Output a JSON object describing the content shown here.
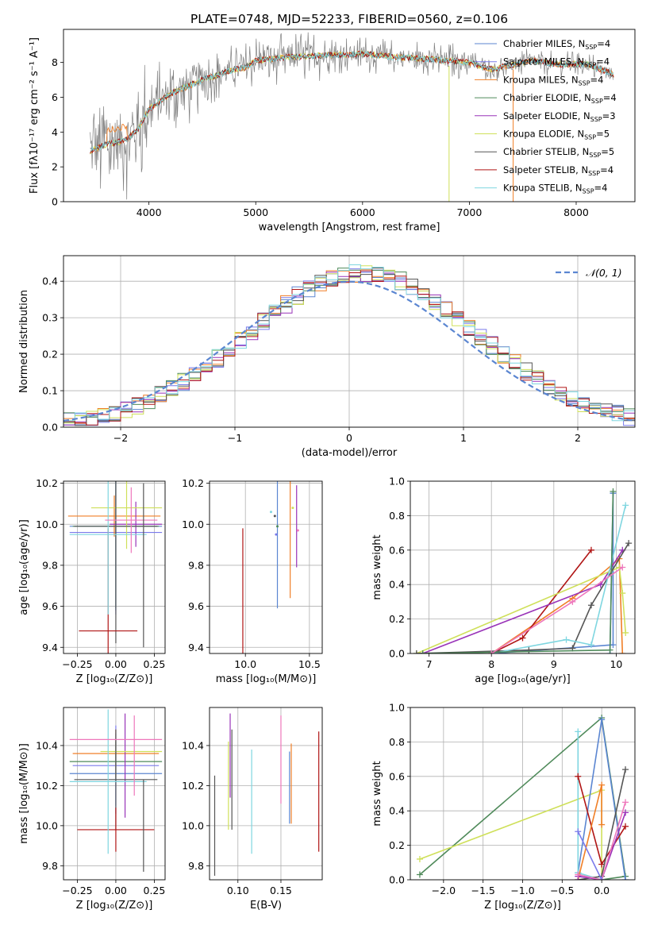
{
  "figure": {
    "title": "PLATE=0748, MJD=52233, FIBERID=0560, z=0.106"
  },
  "colors": {
    "chabrier_miles": "#5b86d1",
    "salpeter_miles": "#7a7aeb",
    "kroupa_miles": "#f07f27",
    "chabrier_elodie": "#4f8a5a",
    "salpeter_elodie": "#9933b8",
    "kroupa_elodie": "#cfe05a",
    "chabrier_stelib": "#555555",
    "salpeter_stelib": "#b01515",
    "kroupa_stelib": "#7fd6e0",
    "pink": "#ee77bb",
    "gray": "#808080"
  },
  "chart_data": [
    {
      "id": "spectrum",
      "type": "line",
      "xlabel": "wavelength [Angstrom, rest frame]",
      "ylabel": "Flux [fλ10⁻¹⁷ erg cm⁻² s⁻¹ A⁻¹]",
      "xlim": [
        3200,
        8550
      ],
      "ylim": [
        0,
        9.9
      ],
      "xticks": [
        "4000",
        "5000",
        "6000",
        "7000",
        "8000"
      ],
      "yticks": [
        "0",
        "2",
        "4",
        "6",
        "8"
      ],
      "continuum": {
        "x": [
          3450,
          3600,
          3700,
          3800,
          3900,
          4000,
          4200,
          4500,
          4800,
          4900,
          5000,
          5300,
          5600,
          6000,
          6300,
          6600,
          7000,
          7200,
          7600,
          7800,
          8100,
          8350
        ],
        "y": [
          2.9,
          3.3,
          3.4,
          3.6,
          4.2,
          5.3,
          6.2,
          7.0,
          7.6,
          7.7,
          8.1,
          8.3,
          8.4,
          8.5,
          8.3,
          8.2,
          8.0,
          7.6,
          8.1,
          7.9,
          7.9,
          7.3
        ]
      },
      "legend": [
        {
          "label": "Chabrier MILES, N",
          "sub": "SSP",
          "suffix": "=4",
          "color": "chabrier_miles"
        },
        {
          "label": "Salpeter MILES, N",
          "sub": "SSP",
          "suffix": "=4",
          "color": "salpeter_miles"
        },
        {
          "label": "Kroupa MILES, N",
          "sub": "SSP",
          "suffix": "=4",
          "color": "kroupa_miles"
        },
        {
          "label": "Chabrier ELODIE, N",
          "sub": "SSP",
          "suffix": "=4",
          "color": "chabrier_elodie"
        },
        {
          "label": "Salpeter ELODIE, N",
          "sub": "SSP",
          "suffix": "=3",
          "color": "salpeter_elodie"
        },
        {
          "label": "Kroupa ELODIE, N",
          "sub": "SSP",
          "suffix": "=5",
          "color": "kroupa_elodie"
        },
        {
          "label": "Chabrier STELIB, N",
          "sub": "SSP",
          "suffix": "=5",
          "color": "chabrier_stelib"
        },
        {
          "label": "Salpeter STELIB, N",
          "sub": "SSP",
          "suffix": "=4",
          "color": "salpeter_stelib"
        },
        {
          "label": "Kroupa STELIB, N",
          "sub": "SSP",
          "suffix": "=4",
          "color": "kroupa_stelib"
        }
      ]
    },
    {
      "id": "residuals",
      "type": "line",
      "xlabel": "(data-model)/error",
      "ylabel": "Normed distribution",
      "xlim": [
        -2.5,
        2.5
      ],
      "ylim": [
        0,
        0.47
      ],
      "xticks": [
        "−2",
        "−1",
        "0",
        "1",
        "2"
      ],
      "yticks": [
        "0.0",
        "0.1",
        "0.2",
        "0.3",
        "0.4"
      ],
      "grid": true,
      "legend": [
        {
          "label": "𝒩(0, 1)",
          "color": "#5b86d1"
        }
      ],
      "legend_placement": "upper-right",
      "bin_width": 0.1
    },
    {
      "id": "age_vs_Z",
      "type": "scatter",
      "xlabel": "Z [log₁₀(Z/Z⊙)]",
      "ylabel": "age  [log₁₀(age/yr)]",
      "xlim": [
        -0.34,
        0.32
      ],
      "ylim": [
        9.37,
        10.21
      ],
      "xticks": [
        "−0.25",
        "0.00",
        "0.25"
      ],
      "yticks": [
        "9.4",
        "9.6",
        "9.8",
        "10.0",
        "10.2"
      ],
      "grid": true,
      "points": [
        {
          "x": 0.0,
          "xerr": 0.3,
          "y": 9.99,
          "yerr": 0.41,
          "color": "chabrier_miles"
        },
        {
          "x": 0.0,
          "xerr": 0.3,
          "y": 9.96,
          "yerr": 0.4,
          "color": "salpeter_miles"
        },
        {
          "x": -0.01,
          "xerr": 0.3,
          "y": 10.04,
          "yerr": 0.1,
          "color": "kroupa_miles"
        },
        {
          "x": 0.0,
          "xerr": 0.28,
          "y": 9.99,
          "yerr": 0.4,
          "color": "chabrier_elodie"
        },
        {
          "x": 0.13,
          "xerr": 0.17,
          "y": 10.0,
          "yerr": 0.11,
          "color": "salpeter_elodie"
        },
        {
          "x": 0.07,
          "xerr": 0.23,
          "y": 10.08,
          "yerr": 0.2,
          "color": "kroupa_elodie"
        },
        {
          "x": 0.0,
          "xerr": 0.27,
          "y": 9.99,
          "yerr": 0.57,
          "color": "chabrier_stelib"
        },
        {
          "x": -0.05,
          "xerr": 0.19,
          "y": 9.48,
          "yerr": 0.5,
          "color": "salpeter_stelib"
        },
        {
          "x": -0.05,
          "xerr": 0.25,
          "y": 9.95,
          "yerr": 0.39,
          "color": "kroupa_stelib"
        },
        {
          "x": 0.1,
          "xerr": 0.17,
          "y": 10.02,
          "yerr": 0.16,
          "color": "pink"
        },
        {
          "x": 0.18,
          "xerr": 0.0,
          "y": 9.8,
          "yerr": 0.4,
          "color": "chabrier_stelib"
        }
      ]
    },
    {
      "id": "age_vs_mass",
      "type": "scatter",
      "xlabel": "mass [log₁₀(M/M⊙)]",
      "ylabel": "",
      "xlim": [
        9.72,
        10.6
      ],
      "ylim": [
        9.37,
        10.21
      ],
      "xticks": [
        "10.0",
        "10.5"
      ],
      "yticks": [
        "9.4",
        "9.6",
        "9.8",
        "10.0",
        "10.2"
      ],
      "grid": true,
      "points": [
        {
          "x": 10.25,
          "xerr": 0.0,
          "y": 9.99,
          "yerr": 0.4,
          "color": "chabrier_miles"
        },
        {
          "x": 10.24,
          "xerr": 0.0,
          "y": 9.95,
          "yerr": 0.0,
          "color": "salpeter_miles"
        },
        {
          "x": 10.35,
          "xerr": 0.0,
          "y": 10.04,
          "yerr": 0.4,
          "color": "kroupa_miles"
        },
        {
          "x": 10.25,
          "xerr": 0.0,
          "y": 9.99,
          "yerr": 0.0,
          "color": "chabrier_elodie"
        },
        {
          "x": 10.4,
          "xerr": 0.0,
          "y": 9.99,
          "yerr": 0.2,
          "color": "salpeter_elodie"
        },
        {
          "x": 10.37,
          "xerr": 0.0,
          "y": 10.08,
          "yerr": 0.0,
          "color": "kroupa_elodie"
        },
        {
          "x": 10.23,
          "xerr": 0.0,
          "y": 10.04,
          "yerr": 0.0,
          "color": "chabrier_stelib"
        },
        {
          "x": 9.98,
          "xerr": 0.0,
          "y": 9.48,
          "yerr": 0.5,
          "color": "salpeter_stelib"
        },
        {
          "x": 10.2,
          "xerr": 0.0,
          "y": 10.06,
          "yerr": 0.0,
          "color": "kroupa_stelib"
        },
        {
          "x": 10.41,
          "xerr": 0.0,
          "y": 9.97,
          "yerr": 0.0,
          "color": "pink"
        }
      ]
    },
    {
      "id": "massweight_vs_age",
      "type": "line",
      "xlabel": "age  [log₁₀(age/yr)]",
      "ylabel": "mass weight",
      "xlim": [
        6.7,
        10.3
      ],
      "ylim": [
        0,
        1.0
      ],
      "xticks": [
        "7",
        "8",
        "9",
        "10"
      ],
      "yticks": [
        "0.0",
        "0.2",
        "0.4",
        "0.6",
        "0.8",
        "1.0"
      ],
      "grid": true,
      "series": [
        {
          "color": "chabrier_miles",
          "x": [
            8.0,
            9.95,
            9.95,
            9.9
          ],
          "y": [
            0.0,
            0.05,
            0.93,
            0.0
          ]
        },
        {
          "color": "kroupa_miles",
          "x": [
            8.0,
            9.3,
            10.05,
            10.1
          ],
          "y": [
            0.0,
            0.32,
            0.55,
            0.0
          ]
        },
        {
          "color": "salpeter_stelib",
          "x": [
            8.0,
            8.5,
            9.6
          ],
          "y": [
            0.0,
            0.09,
            0.6
          ]
        },
        {
          "color": "salpeter_elodie",
          "x": [
            6.9,
            9.75,
            10.1
          ],
          "y": [
            0.0,
            0.4,
            0.6
          ]
        },
        {
          "color": "kroupa_elodie",
          "x": [
            6.8,
            10.05,
            10.1,
            10.15
          ],
          "y": [
            0.0,
            0.5,
            0.35,
            0.12
          ]
        },
        {
          "color": "chabrier_stelib",
          "x": [
            6.8,
            8.6,
            9.3,
            9.6,
            10.2
          ],
          "y": [
            0.0,
            0.02,
            0.03,
            0.28,
            0.64
          ]
        },
        {
          "color": "kroupa_stelib",
          "x": [
            8.0,
            9.2,
            9.6,
            10.15
          ],
          "y": [
            0.0,
            0.08,
            0.05,
            0.86
          ]
        },
        {
          "color": "chabrier_elodie",
          "x": [
            6.9,
            9.9,
            9.95
          ],
          "y": [
            0.0,
            0.02,
            0.94
          ]
        },
        {
          "color": "pink",
          "x": [
            8.0,
            9.3,
            10.1
          ],
          "y": [
            0.0,
            0.3,
            0.5
          ]
        }
      ]
    },
    {
      "id": "mass_vs_Z",
      "type": "scatter",
      "xlabel": "Z [log₁₀(Z/Z⊙)]",
      "ylabel": "mass [log₁₀(M/M⊙)]",
      "xlim": [
        -0.34,
        0.32
      ],
      "ylim": [
        9.73,
        10.59
      ],
      "xticks": [
        "−0.25",
        "0.00",
        "0.25"
      ],
      "yticks": [
        "9.8",
        "10.0",
        "10.2",
        "10.4"
      ],
      "grid": true,
      "points": [
        {
          "x": 0.0,
          "xerr": 0.3,
          "y": 10.26,
          "yerr": 0.2,
          "color": "chabrier_miles"
        },
        {
          "x": 0.0,
          "xerr": 0.28,
          "y": 10.3,
          "yerr": 0.2,
          "color": "salpeter_miles"
        },
        {
          "x": 0.0,
          "xerr": 0.28,
          "y": 10.36,
          "yerr": 0.12,
          "color": "kroupa_miles"
        },
        {
          "x": 0.0,
          "xerr": 0.3,
          "y": 10.32,
          "yerr": 0.1,
          "color": "chabrier_elodie"
        },
        {
          "x": 0.06,
          "xerr": 0.0,
          "y": 10.3,
          "yerr": 0.26,
          "color": "salpeter_elodie"
        },
        {
          "x": 0.1,
          "xerr": 0.2,
          "y": 10.37,
          "yerr": 0.0,
          "color": "kroupa_elodie"
        },
        {
          "x": 0.0,
          "xerr": 0.27,
          "y": 10.23,
          "yerr": 0.25,
          "color": "chabrier_stelib"
        },
        {
          "x": 0.0,
          "xerr": 0.25,
          "y": 9.98,
          "yerr": 0.11,
          "color": "salpeter_stelib"
        },
        {
          "x": -0.05,
          "xerr": 0.25,
          "y": 10.22,
          "yerr": 0.36,
          "color": "kroupa_stelib"
        },
        {
          "x": 0.0,
          "xerr": 0.3,
          "y": 10.43,
          "yerr": 0.0,
          "color": "pink"
        },
        {
          "x": 0.18,
          "xerr": 0.0,
          "y": 10.0,
          "yerr": 0.23,
          "color": "chabrier_stelib"
        },
        {
          "x": 0.12,
          "xerr": 0.0,
          "y": 10.35,
          "yerr": 0.2,
          "color": "pink"
        }
      ]
    },
    {
      "id": "mass_vs_EBV",
      "type": "scatter",
      "xlabel": "E(B-V)",
      "ylabel": "",
      "xlim": [
        0.067,
        0.198
      ],
      "ylim": [
        9.73,
        10.59
      ],
      "xticks": [
        "0.10",
        "0.15"
      ],
      "yticks": [
        "9.8",
        "10.0",
        "10.2",
        "10.4"
      ],
      "grid": true,
      "points": [
        {
          "x": 0.073,
          "xerr": 0.0,
          "y": 10.0,
          "yerr": 0.25,
          "color": "chabrier_stelib"
        },
        {
          "x": 0.089,
          "xerr": 0.0,
          "y": 10.2,
          "yerr": 0.22,
          "color": "kroupa_elodie"
        },
        {
          "x": 0.091,
          "xerr": 0.0,
          "y": 10.35,
          "yerr": 0.21,
          "color": "salpeter_elodie"
        },
        {
          "x": 0.093,
          "xerr": 0.0,
          "y": 10.23,
          "yerr": 0.25,
          "color": "chabrier_stelib"
        },
        {
          "x": 0.116,
          "xerr": 0.0,
          "y": 10.12,
          "yerr": 0.26,
          "color": "kroupa_stelib"
        },
        {
          "x": 0.15,
          "xerr": 0.0,
          "y": 10.33,
          "yerr": 0.22,
          "color": "pink"
        },
        {
          "x": 0.16,
          "xerr": 0.0,
          "y": 10.19,
          "yerr": 0.18,
          "color": "chabrier_miles"
        },
        {
          "x": 0.162,
          "xerr": 0.0,
          "y": 10.21,
          "yerr": 0.2,
          "color": "kroupa_miles"
        },
        {
          "x": 0.194,
          "xerr": 0.0,
          "y": 10.17,
          "yerr": 0.3,
          "color": "salpeter_stelib"
        }
      ]
    },
    {
      "id": "massweight_vs_Z",
      "type": "line",
      "xlabel": "Z [log₁₀(Z/Z⊙)]",
      "ylabel": "mass weight",
      "xlim": [
        -2.42,
        0.42
      ],
      "ylim": [
        0,
        1.0
      ],
      "xticks": [
        "−2.0",
        "−1.5",
        "−1.0",
        "−0.5",
        "0.0"
      ],
      "yticks": [
        "0.0",
        "0.2",
        "0.4",
        "0.6",
        "0.8",
        "1.0"
      ],
      "grid": true,
      "series": [
        {
          "color": "chabrier_elodie",
          "x": [
            -2.3,
            0.0,
            0.3,
            0.0
          ],
          "y": [
            0.03,
            0.94,
            0.02,
            0.0
          ]
        },
        {
          "color": "kroupa_elodie",
          "x": [
            -2.3,
            0.0,
            0.0
          ],
          "y": [
            0.12,
            0.52,
            0.0
          ]
        },
        {
          "color": "chabrier_miles",
          "x": [
            -0.3,
            0.0,
            0.3
          ],
          "y": [
            0.04,
            0.93,
            0.0
          ]
        },
        {
          "color": "kroupa_stelib",
          "x": [
            -0.3,
            -0.3,
            0.0
          ],
          "y": [
            0.86,
            0.04,
            0.0
          ]
        },
        {
          "color": "salpeter_stelib",
          "x": [
            -0.3,
            0.0,
            0.3
          ],
          "y": [
            0.6,
            0.09,
            0.31
          ]
        },
        {
          "color": "kroupa_miles",
          "x": [
            -0.3,
            0.0,
            0.0
          ],
          "y": [
            0.0,
            0.55,
            0.32
          ]
        },
        {
          "color": "chabrier_stelib",
          "x": [
            -0.3,
            0.0,
            0.3
          ],
          "y": [
            0.0,
            0.02,
            0.64
          ]
        },
        {
          "color": "salpeter_elodie",
          "x": [
            -0.3,
            0.0,
            0.3
          ],
          "y": [
            0.02,
            0.0,
            0.39
          ]
        },
        {
          "color": "pink",
          "x": [
            -0.3,
            0.0,
            0.3
          ],
          "y": [
            0.03,
            0.0,
            0.45
          ]
        },
        {
          "color": "salpeter_miles",
          "x": [
            -0.3,
            0.0
          ],
          "y": [
            0.28,
            0.0
          ]
        }
      ]
    }
  ]
}
